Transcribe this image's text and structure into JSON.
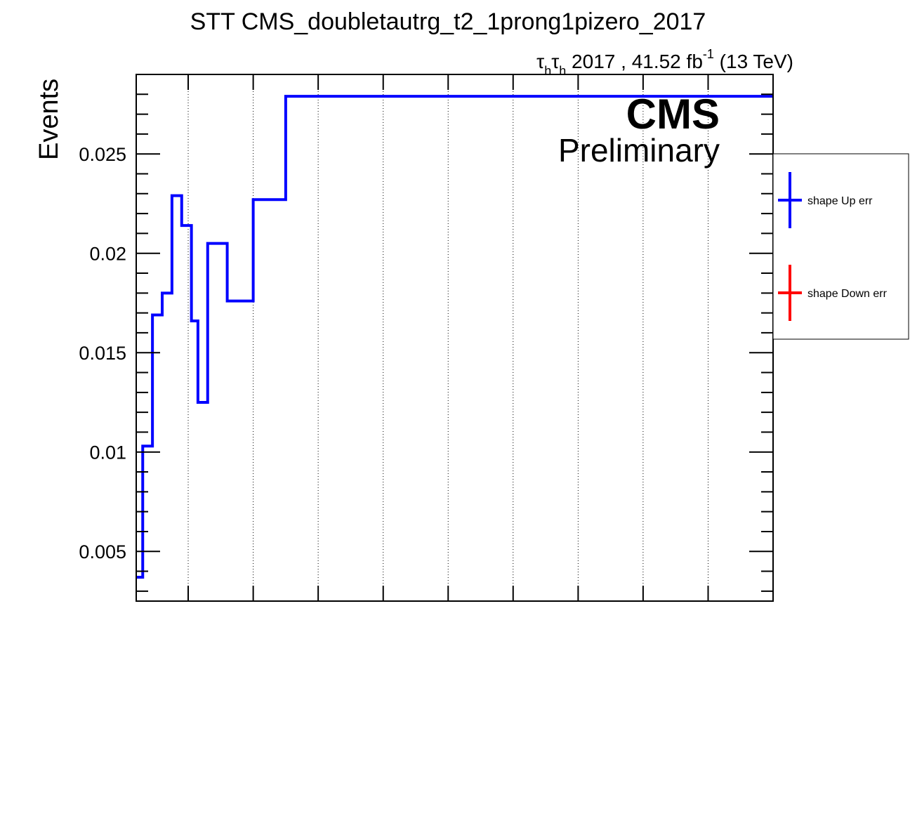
{
  "header": {
    "title": "STT CMS_doubletautrg_t2_1prong1pizero_2017",
    "channel_tau": "τ",
    "channel_sub": "h",
    "lumi_text_main": " 2017 , 41.52 fb",
    "lumi_text_exp": "-1",
    "lumi_text_end": " (13 TeV)",
    "cms_label": "CMS",
    "prelim_label": "Preliminary"
  },
  "legend": {
    "items": [
      {
        "label": "shape Up err",
        "color": "#0000ff"
      },
      {
        "label": "shape Down err",
        "color": "#ff0000"
      }
    ]
  },
  "chart_data": {
    "type": "line",
    "title": "STT CMS_doubletautrg_t2_1prong1pizero_2017",
    "xlabel": "",
    "ylabel": "Events",
    "ylim": [
      0.0025,
      0.029
    ],
    "xlim": [
      0,
      1
    ],
    "y_ticks": [
      0.005,
      0.01,
      0.015,
      0.02,
      0.025
    ],
    "y_tick_labels": [
      "0.005",
      "0.01",
      "0.015",
      "0.02",
      "0.025"
    ],
    "x_grid": [
      0.0816,
      0.1837,
      0.2857,
      0.3878,
      0.4898,
      0.5918,
      0.6939,
      0.7959,
      0.898
    ],
    "grid": "x-dotted",
    "legend_position": "right-outside",
    "series": [
      {
        "name": "shape Up err",
        "color": "#0000ff",
        "step_edges": [
          0,
          0.0102,
          0.0255,
          0.0408,
          0.0561,
          0.0714,
          0.0867,
          0.0969,
          0.1122,
          0.1429,
          0.1837,
          0.2347,
          1.0
        ],
        "values": [
          0.0037,
          0.0103,
          0.0169,
          0.018,
          0.0229,
          0.0214,
          0.0166,
          0.0125,
          0.0205,
          0.0176,
          0.0227,
          0.0279
        ]
      },
      {
        "name": "shape Down err",
        "color": "#ff0000",
        "step_edges": [],
        "values": []
      }
    ]
  }
}
